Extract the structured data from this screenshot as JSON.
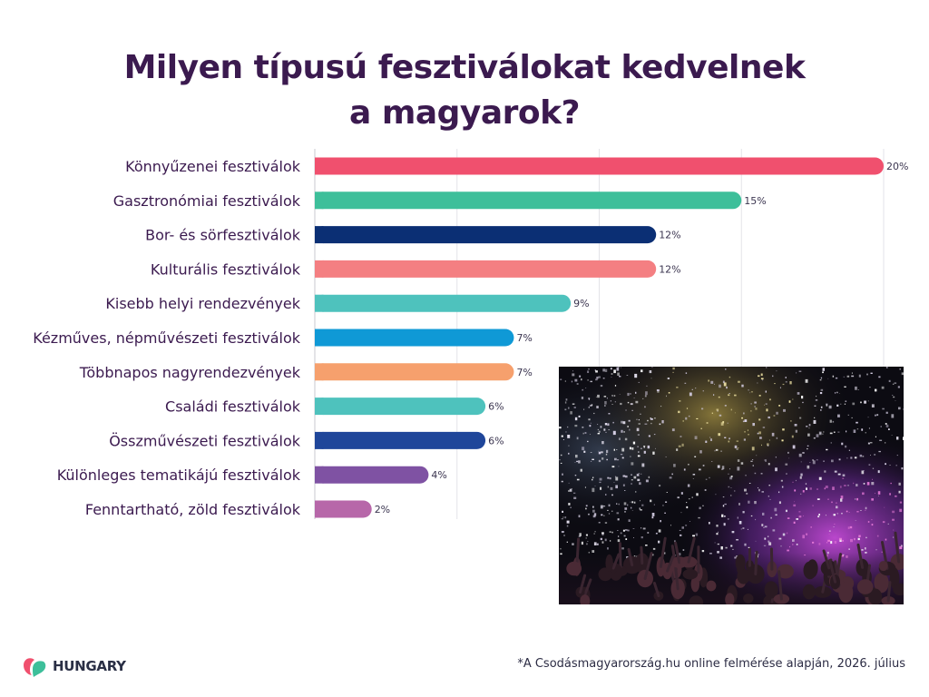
{
  "header": {
    "title_line1": "Milyen típusú fesztiválokat kedvelnek",
    "title_line2": "a magyarok?"
  },
  "chart_data": {
    "type": "bar",
    "orientation": "horizontal",
    "categories": [
      "Könnyűzenei fesztiválok",
      "Gasztronómiai fesztiválok",
      "Bor- és sörfesztiválok",
      "Kulturális fesztiválok",
      "Kisebb helyi rendezvények",
      "Kézműves, népművészeti fesztiválok",
      "Többnapos nagyrendezvények",
      "Családi fesztiválok",
      "Összművészeti fesztiválok",
      "Különleges tematikájú fesztiválok",
      "Fenntartható, zöld fesztiválok"
    ],
    "values": [
      20,
      15,
      12,
      12,
      9,
      7,
      7,
      6,
      6,
      4,
      2
    ],
    "value_labels": [
      "20%",
      "15%",
      "12%",
      "12%",
      "9%",
      "7%",
      "7%",
      "6%",
      "6%",
      "4%",
      "2%"
    ],
    "colors": [
      "#f0506e",
      "#3dbf9a",
      "#0b2f74",
      "#f47f82",
      "#4ec2bd",
      "#0f99d6",
      "#f6a06d",
      "#4ec2bd",
      "#1f469a",
      "#7f52a3",
      "#b767a9"
    ],
    "xlim": [
      0,
      20
    ],
    "grid": true,
    "legend": "none"
  },
  "footer": {
    "note": "*A Csodásmagyarország.hu online felmérése alapján, 2026. július",
    "logo_text": "HUNGARY",
    "logo_colors": [
      "#f0506e",
      "#3dbf9a"
    ]
  },
  "photo": {
    "icon": "concert-confetti-photo"
  }
}
